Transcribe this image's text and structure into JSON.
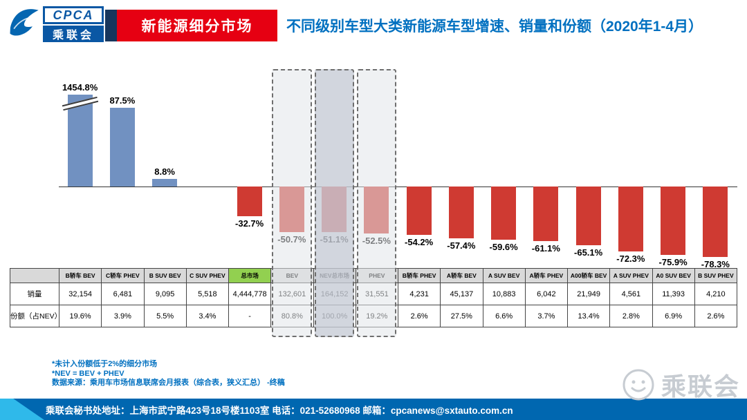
{
  "header": {
    "logo_cpca": "CPCA",
    "logo_cn": "乘联会",
    "banner": "新能源细分市场",
    "title": "不同级别车型大类新能源车型增速、销量和份额（2020年1-4月）"
  },
  "chart_data": {
    "type": "bar",
    "title": "不同级别车型大类新能源车型增速、销量和份额（2020年1-4月）",
    "xlabel": "",
    "ylabel": "",
    "value_format": "percent",
    "grid": false,
    "legend": false,
    "categories": [
      "B轿车 BEV",
      "C轿车 PHEV",
      "B SUV BEV",
      "C SUV PHEV",
      "总市场",
      "BEV",
      "NEV总市场",
      "PHEV",
      "B轿车 PHEV",
      "A轿车 BEV",
      "A SUV BEV",
      "A轿车 PHEV",
      "A00轿车 BEV",
      "A SUV PHEV",
      "A0 SUV BEV",
      "B SUV PHEV"
    ],
    "series": [
      {
        "name": "增速",
        "values": [
          1454.8,
          87.5,
          8.8,
          null,
          -32.7,
          -50.7,
          -51.1,
          -52.5,
          -54.2,
          -57.4,
          -59.6,
          -61.1,
          -65.1,
          -72.3,
          -75.9,
          -78.3
        ]
      }
    ],
    "labels": [
      "1454.8%",
      "87.5%",
      "8.8%",
      "",
      "-32.7%",
      "-50.7%",
      "-51.1%",
      "-52.5%",
      "-54.2%",
      "-57.4%",
      "-59.6%",
      "-61.1%",
      "-65.1%",
      "-72.3%",
      "-75.9%",
      "-78.3%"
    ],
    "axis_break": {
      "column_index": 0,
      "note": "首根柱被截断（1454.8%）"
    },
    "highlights": [
      {
        "column_index": 5,
        "label": "BEV",
        "strong": false
      },
      {
        "column_index": 6,
        "label": "NEV总市场",
        "strong": true
      },
      {
        "column_index": 7,
        "label": "PHEV",
        "strong": false
      }
    ],
    "colors": {
      "positive_bar": "#7191c1",
      "negative_bar": "#cf3a32",
      "highlight_fill": "#e2e5ea",
      "highlight_strong_fill": "#c7ccd6",
      "market_header_cell": "#92d050"
    }
  },
  "table": {
    "columns": [
      "B轿车 BEV",
      "C轿车 PHEV",
      "B SUV BEV",
      "C SUV PHEV",
      "总市场",
      "BEV",
      "NEV总市场",
      "PHEV",
      "B轿车 PHEV",
      "A轿车 BEV",
      "A SUV BEV",
      "A轿车 PHEV",
      "A00轿车 BEV",
      "A SUV PHEV",
      "A0 SUV BEV",
      "B SUV PHEV"
    ],
    "special_header": {
      "index": 4
    },
    "rows": [
      {
        "label": "销量",
        "values": [
          "32,154",
          "6,481",
          "9,095",
          "5,518",
          "4,444,778",
          "132,601",
          "164,152",
          "31,551",
          "4,231",
          "45,137",
          "10,883",
          "6,042",
          "21,949",
          "4,561",
          "11,393",
          "4,210"
        ]
      },
      {
        "label": "份额（占NEV）",
        "values": [
          "19.6%",
          "3.9%",
          "5.5%",
          "3.4%",
          "-",
          "80.8%",
          "100.0%",
          "19.2%",
          "2.6%",
          "27.5%",
          "6.6%",
          "3.7%",
          "13.4%",
          "2.8%",
          "6.9%",
          "2.6%"
        ]
      }
    ]
  },
  "notes": [
    "*未计入份额低于2%的细分市场",
    "*NEV = BEV + PHEV",
    "数据来源：乘用车市场信息联席会月报表（综合表，狭义汇总）  -终稿"
  ],
  "footer": {
    "address": "乘联会秘书处地址：上海市武宁路423号18号楼1103室  电话：021-52680968  邮箱：cpcanews@sxtauto.com.cn"
  },
  "watermark": {
    "text": "乘联会"
  }
}
